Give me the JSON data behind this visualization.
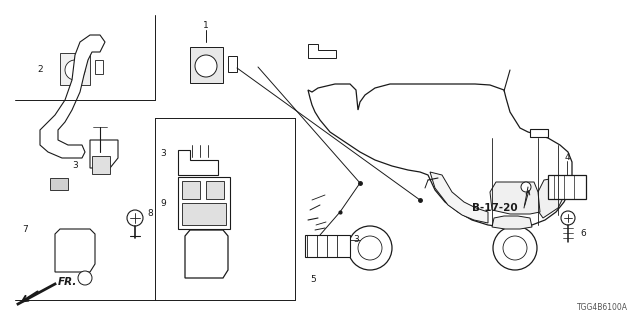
{
  "bg_color": "#ffffff",
  "line_color": "#1a1a1a",
  "figsize": [
    6.4,
    3.2
  ],
  "dpi": 100,
  "part_id": "TGG4B6100A",
  "b_label": "B-17-20",
  "fr_label": "FR."
}
